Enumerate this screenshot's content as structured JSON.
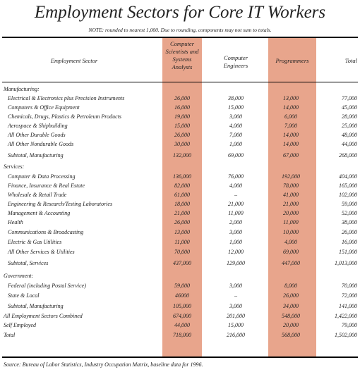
{
  "title": "Employment Sectors for Core IT Workers",
  "note": "NOTE: rounded to nearest 1,000. Due to rounding, components may not sum to totals.",
  "columns": {
    "sector": "Employment Sector",
    "cs": "Computer Scientists and Systems Analysts",
    "eng": "Computer Engineers",
    "prog": "Programmers",
    "total": "Total"
  },
  "highlight_color": "#e8a58c",
  "rows": [
    {
      "label": "Manufacturing:",
      "indent": false,
      "cs": "",
      "eng": "",
      "prog": "",
      "total": ""
    },
    {
      "label": "Electrical & Electronics plus Precision Instruments",
      "indent": true,
      "cs": "26,000",
      "eng": "38,000",
      "prog": "13,000",
      "total": "77,000"
    },
    {
      "label": "Computers & Office Equipment",
      "indent": true,
      "cs": "16,000",
      "eng": "15,000",
      "prog": "14,000",
      "total": "45,000"
    },
    {
      "label": "Chemicals, Drugs, Plastics & Petroleum Products",
      "indent": true,
      "cs": "19,000",
      "eng": "3,000",
      "prog": "6,000",
      "total": "28,000"
    },
    {
      "label": "Aerospace & Shipbuilding",
      "indent": true,
      "cs": "15,000",
      "eng": "4,000",
      "prog": "7,000",
      "total": "25,000"
    },
    {
      "label": "All Other Durable Goods",
      "indent": true,
      "cs": "26,000",
      "eng": "7,000",
      "prog": "14,000",
      "total": "48,000"
    },
    {
      "label": "All Other Nondurable Goods",
      "indent": true,
      "cs": "30,000",
      "eng": "1,000",
      "prog": "14,000",
      "total": "44,000"
    },
    {
      "label": "Subtotal, Manufacturing",
      "indent": true,
      "cs": "132,000",
      "eng": "69,000",
      "prog": "67,000",
      "total": "268,000"
    },
    {
      "label": "Services:",
      "indent": false,
      "cs": "",
      "eng": "",
      "prog": "",
      "total": ""
    },
    {
      "label": "Computer & Data Processing",
      "indent": true,
      "cs": "136,000",
      "eng": "76,000",
      "prog": "192,000",
      "total": "404,000"
    },
    {
      "label": "Finance, Insurance & Real Estate",
      "indent": true,
      "cs": "82,000",
      "eng": "4,000",
      "prog": "78,000",
      "total": "165,000"
    },
    {
      "label": "Wholesale & Retail Trade",
      "indent": true,
      "cs": "61,000",
      "eng": "–",
      "prog": "41,000",
      "total": "102,000"
    },
    {
      "label": "Engineering & Research/Testing Laboratories",
      "indent": true,
      "cs": "18,000",
      "eng": "21,000",
      "prog": "21,000",
      "total": "59,000"
    },
    {
      "label": "Management & Accounting",
      "indent": true,
      "cs": "21,000",
      "eng": "11,000",
      "prog": "20,000",
      "total": "52,000"
    },
    {
      "label": "Health",
      "indent": true,
      "cs": "26,000",
      "eng": "2,000",
      "prog": "11,000",
      "total": "38,000"
    },
    {
      "label": "Communications & Broadcasting",
      "indent": true,
      "cs": "13,000",
      "eng": "3,000",
      "prog": "10,000",
      "total": "26,000"
    },
    {
      "label": "Electric & Gas Utilities",
      "indent": true,
      "cs": "11,000",
      "eng": "1,000",
      "prog": "4,000",
      "total": "16,000"
    },
    {
      "label": "All Other Services & Utilities",
      "indent": true,
      "cs": "70,000",
      "eng": "12,000",
      "prog": "69,000",
      "total": "151,000"
    },
    {
      "label": "Subtotal, Services",
      "indent": true,
      "cs": "437,000",
      "eng": "129,000",
      "prog": "447,000",
      "total": "1,013,000"
    },
    {
      "label": "Government:",
      "indent": false,
      "cs": "",
      "eng": "",
      "prog": "",
      "total": ""
    },
    {
      "label": "Federal (including Postal Service)",
      "indent": true,
      "cs": "59,000",
      "eng": "3,000",
      "prog": "8,000",
      "total": "70,000"
    },
    {
      "label": "State & Local",
      "indent": true,
      "cs": "46000",
      "eng": "–",
      "prog": "26,000",
      "total": "72,000"
    },
    {
      "label": "Subtotal, Manufacturing",
      "indent": true,
      "cs": "105,000",
      "eng": "3,000",
      "prog": "34,000",
      "total": "141,000"
    },
    {
      "label": "All Employment Sectors Combined",
      "indent": false,
      "cs": "674,000",
      "eng": "201,000",
      "prog": "548,000",
      "total": "1,422,000"
    },
    {
      "label": "Self Employed",
      "indent": false,
      "cs": "44,000",
      "eng": "15,000",
      "prog": "20,000",
      "total": "79,000"
    },
    {
      "label": "Total",
      "indent": false,
      "cs": "718,000",
      "eng": "216,000",
      "prog": "568,000",
      "total": "1,502,000"
    }
  ],
  "source": "Source: Bureau of Labor Statistics, Industry Occupation Matrix, baseline data for 1996."
}
